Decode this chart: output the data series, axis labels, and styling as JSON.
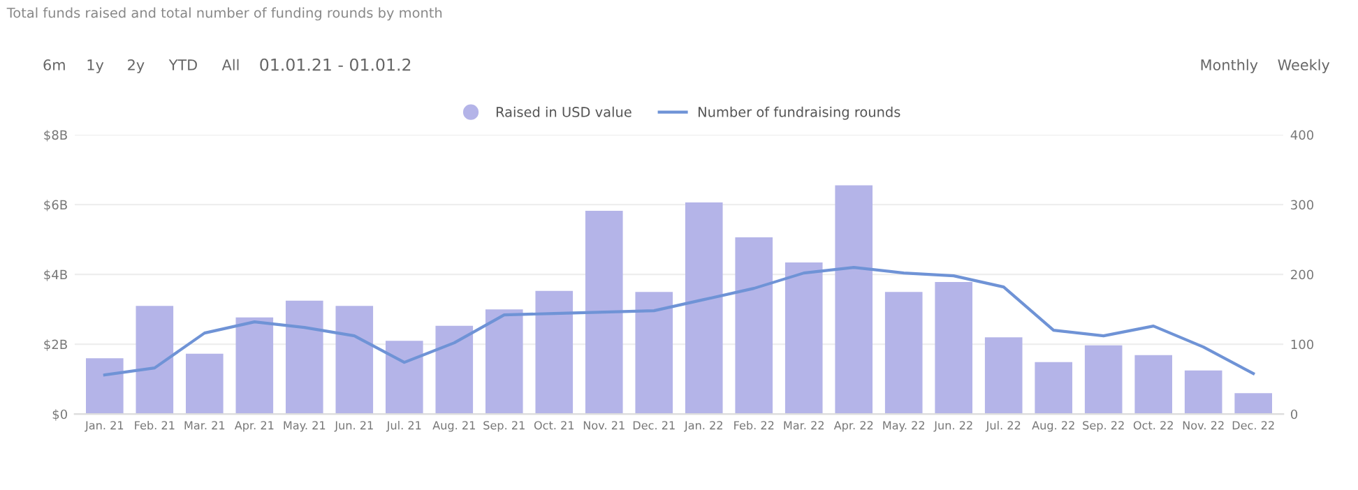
{
  "chart_data": {
    "type": "bar",
    "title": "Total funds raised and total number of funding rounds by month",
    "annotations": [
      "6m",
      "1y",
      "2y",
      "YTD",
      "All",
      "01.01.21 - 01.01.2",
      "Monthly",
      "Weekly"
    ],
    "categories": [
      "Jan. 21",
      "Feb. 21",
      "Mar. 21",
      "Apr. 21",
      "May. 21",
      "Jun. 21",
      "Jul. 21",
      "Aug. 21",
      "Sep. 21",
      "Oct. 21",
      "Nov. 21",
      "Dec. 21",
      "Jan. 22",
      "Feb. 22",
      "Mar. 22",
      "Apr. 22",
      "May. 22",
      "Jun. 22",
      "Jul. 22",
      "Aug. 22",
      "Sep. 22",
      "Oct. 22",
      "Nov. 22",
      "Dec. 22"
    ],
    "series": [
      {
        "name": "Raised in USD value",
        "color": "#b4b4e8",
        "values": [
          1.6,
          3.1,
          1.73,
          2.77,
          3.25,
          3.1,
          2.1,
          2.53,
          3.0,
          3.53,
          5.82,
          3.5,
          6.06,
          5.06,
          4.34,
          6.55,
          3.5,
          3.78,
          2.2,
          1.49,
          1.97,
          1.69,
          1.25,
          0.6
        ]
      },
      {
        "name": "Number of fundraising rounds",
        "type": "line",
        "axis": "y2",
        "color": "#6f93d6",
        "values": [
          56,
          66,
          116,
          132,
          124,
          112,
          74,
          102,
          142,
          144,
          146,
          148,
          164,
          180,
          202,
          210,
          202,
          198,
          182,
          120,
          112,
          126,
          96,
          58
        ]
      }
    ],
    "ylim": [
      0,
      8
    ],
    "yticks": [
      {
        "value": 0,
        "label": "$0"
      },
      {
        "value": 2,
        "label": "$2B"
      },
      {
        "value": 4,
        "label": "$4B"
      },
      {
        "value": 6,
        "label": "$6B"
      },
      {
        "value": 8,
        "label": "$8B"
      }
    ],
    "y2lim": [
      0,
      400
    ],
    "y2ticks": [
      0,
      100,
      200,
      300,
      400
    ],
    "grid": "y",
    "legend": "top",
    "marker": "none"
  }
}
